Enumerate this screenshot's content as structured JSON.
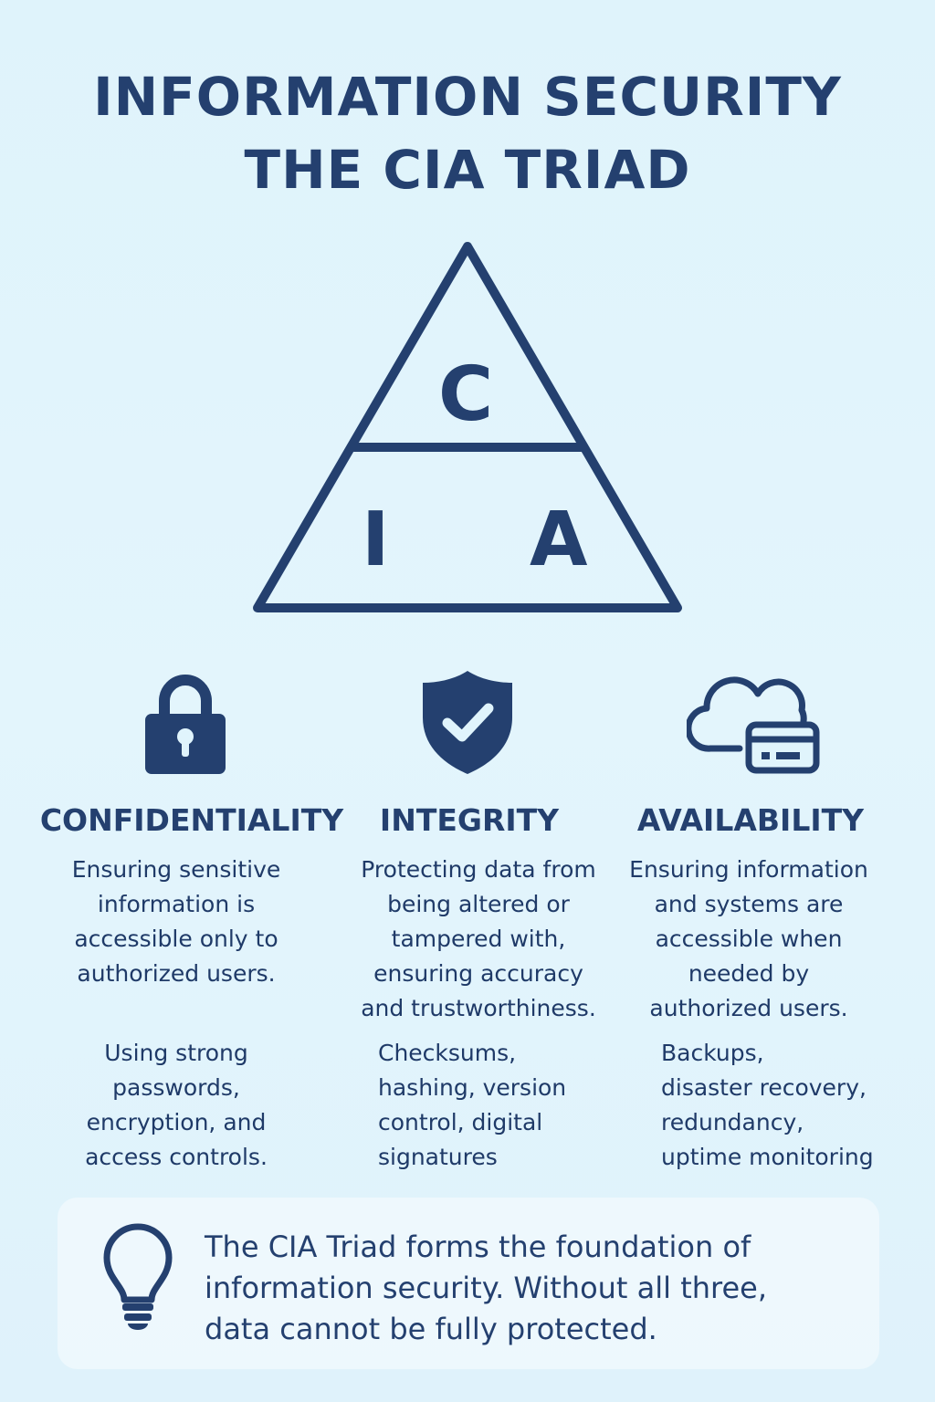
{
  "title": {
    "line1": "INFORMATION SECURITY",
    "line2": "THE CIA TRIAD"
  },
  "triad": {
    "top_letter": "C",
    "bottom_left_letter": "I",
    "bottom_right_letter": "A"
  },
  "columns": [
    {
      "icon": "padlock-icon",
      "heading": "CONFIDENTIALITY",
      "description": "Ensuring sensitive\ninformation is\naccessible only to\nauthorized users.",
      "examples": "Using strong\npasswords,\nencryption, and\naccess controls."
    },
    {
      "icon": "shield-check-icon",
      "heading": "INTEGRITY",
      "description": "Protecting data from\nbeing altered or\ntampered with,\nensuring accuracy\nand trustworthiness.",
      "examples": "Checksums,\nhashing, version\ncontrol, digital\nsignatures"
    },
    {
      "icon": "cloud-server-icon",
      "heading": "AVAILABILITY",
      "description": "Ensuring information\nand systems are\naccessible when\nneeded by\nauthorized users.",
      "examples": "Backups,\ndisaster recovery,\nredundancy,\nuptime monitoring"
    }
  ],
  "note": {
    "icon": "lightbulb-icon",
    "text": "The CIA Triad forms the foundation of\ninformation security. Without all three,\ndata cannot be fully protected."
  },
  "colors": {
    "primary": "#24406f",
    "background": "#e0f4fc"
  }
}
